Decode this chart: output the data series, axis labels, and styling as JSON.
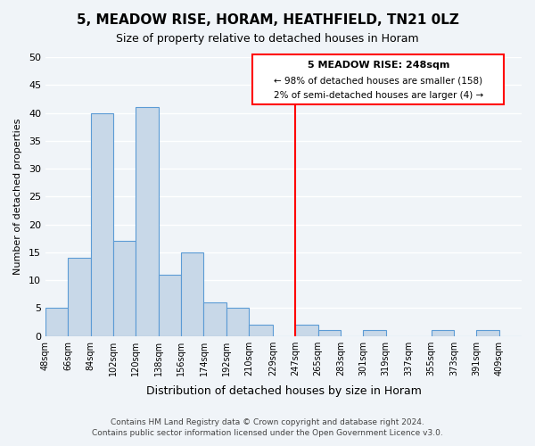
{
  "title": "5, MEADOW RISE, HORAM, HEATHFIELD, TN21 0LZ",
  "subtitle": "Size of property relative to detached houses in Horam",
  "xlabel": "Distribution of detached houses by size in Horam",
  "ylabel": "Number of detached properties",
  "bin_labels": [
    "48sqm",
    "66sqm",
    "84sqm",
    "102sqm",
    "120sqm",
    "138sqm",
    "156sqm",
    "174sqm",
    "192sqm",
    "210sqm",
    "229sqm",
    "247sqm",
    "265sqm",
    "283sqm",
    "301sqm",
    "319sqm",
    "337sqm",
    "355sqm",
    "373sqm",
    "391sqm",
    "409sqm"
  ],
  "bar_values": [
    5,
    14,
    40,
    17,
    41,
    11,
    15,
    6,
    5,
    2,
    0,
    2,
    1,
    0,
    1,
    0,
    0,
    1,
    0,
    1,
    0
  ],
  "bar_color": "#c8d8e8",
  "bar_edge_color": "#5b9bd5",
  "vline_x": 247,
  "bin_edges": [
    48,
    66,
    84,
    102,
    120,
    138,
    156,
    174,
    192,
    210,
    229,
    247,
    265,
    283,
    301,
    319,
    337,
    355,
    373,
    391,
    409
  ],
  "ylim": [
    0,
    50
  ],
  "yticks": [
    0,
    5,
    10,
    15,
    20,
    25,
    30,
    35,
    40,
    45,
    50
  ],
  "annotation_title": "5 MEADOW RISE: 248sqm",
  "annotation_line1": "← 98% of detached houses are smaller (158)",
  "annotation_line2": "2% of semi-detached houses are larger (4) →",
  "footer_line1": "Contains HM Land Registry data © Crown copyright and database right 2024.",
  "footer_line2": "Contains public sector information licensed under the Open Government Licence v3.0.",
  "background_color": "#f0f4f8",
  "grid_color": "#ffffff"
}
